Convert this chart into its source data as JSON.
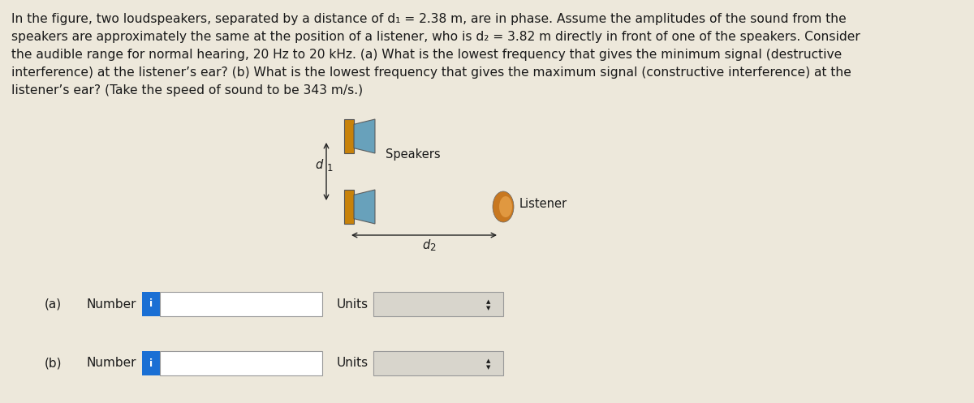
{
  "bg_color": "#ede8db",
  "text_color": "#1a1a1a",
  "line1": "In the figure, two loudspeakers, separated by a distance of d",
  "line1b": "1",
  "line1c": " = 2.38 m, are in phase. Assume the amplitudes of the sound from the",
  "line2": "speakers are approximately the same at the position of a listener, who is d",
  "line2b": "2",
  "line2c": " = 3.82 m directly in front of one of the speakers. Consider",
  "line3": "the audible range for normal hearing, 20 Hz to 20 kHz. (a) What is the lowest frequency that gives the minimum signal (destructive",
  "line4": "interference) at the listener’s ear? (b) What is the lowest frequency that gives the maximum signal (constructive interference) at the",
  "line5": "listener’s ear? (Take the speed of sound to be 343 m/s.)",
  "d1_label": "d",
  "d1_sub": "1",
  "d2_label": "d",
  "d2_sub": "2",
  "speakers_label": "Speakers",
  "listener_label": "Listener",
  "a_label": "(a)",
  "b_label": "(b)",
  "number_label": "Number",
  "units_label": "Units",
  "i_label": "i",
  "speaker_body_color": "#c8820a",
  "speaker_cone_color": "#5a9ab8",
  "listener_body_color": "#c87820",
  "listener_inner_color": "#e09840",
  "blue_i_color": "#1a6fd4",
  "input_box_bg": "#ffffff",
  "input_border_color": "#999999",
  "units_box_color": "#d8d5cc",
  "arrow_color": "#222222",
  "font_size_para": 11.2,
  "font_size_diagram": 10.5,
  "font_size_input": 11.0
}
